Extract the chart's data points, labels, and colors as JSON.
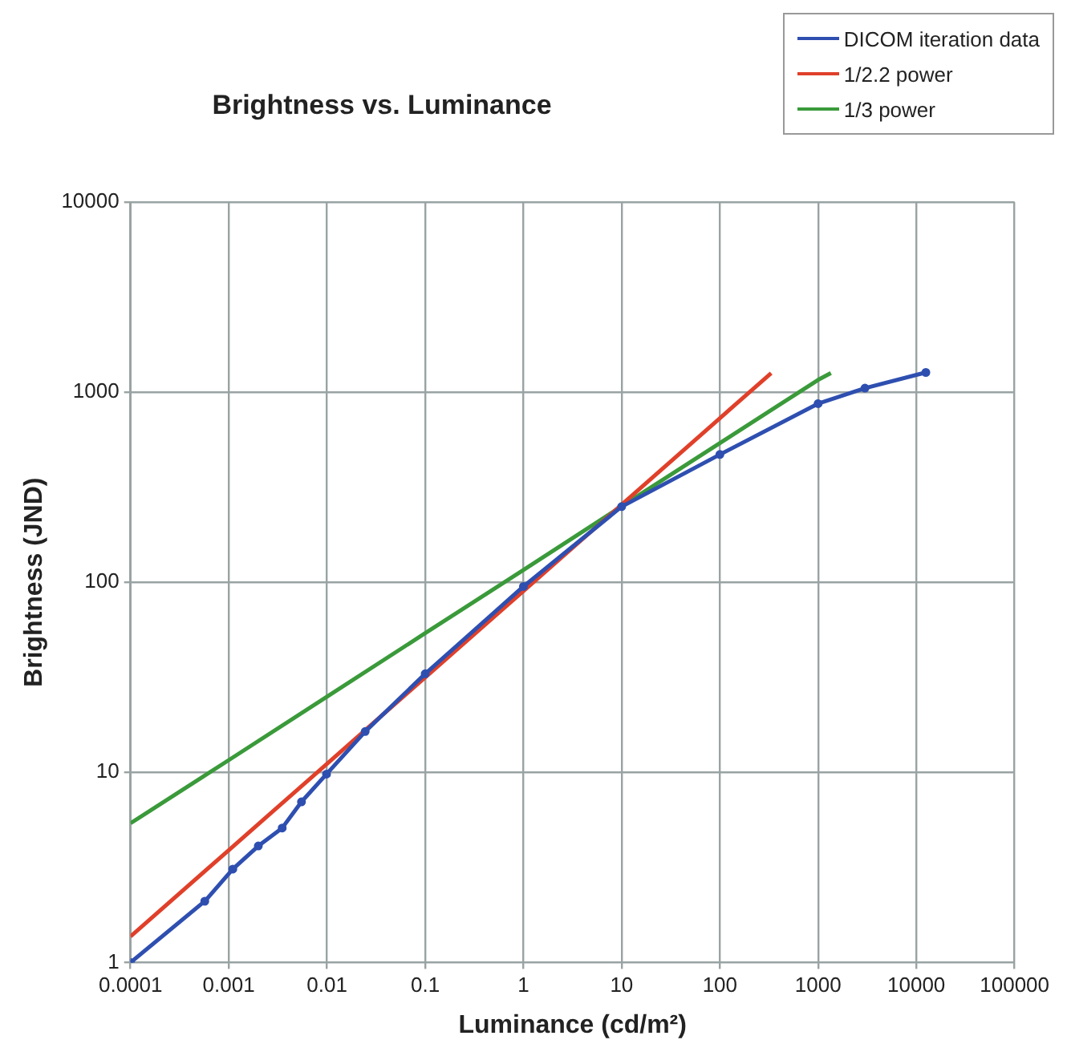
{
  "chart_data": {
    "type": "line",
    "title": "Brightness vs. Luminance",
    "xlabel": "Luminance (cd/m²)",
    "ylabel": "Brightness (JND)",
    "log": "xy",
    "grid": true,
    "legend": "top right",
    "line_style": "solid",
    "xlim": [
      0.0001,
      100000
    ],
    "xticks": [
      0.0001,
      0.001,
      0.01,
      0.1,
      1,
      10,
      100,
      1000,
      10000,
      100000
    ],
    "ylim": [
      1,
      10000
    ],
    "yticks": [
      1,
      10,
      100,
      1000,
      10000
    ],
    "series": [
      {
        "name": "DICOM iteration data",
        "color": "#2e4fb0",
        "marker": "circle",
        "x": [
          0.0001,
          0.00057,
          0.0011,
          0.002,
          0.0035,
          0.0055,
          0.0099,
          0.0245,
          0.1,
          1,
          10,
          100,
          1000,
          3000,
          12500
        ],
        "values": [
          1,
          2.1,
          3.1,
          4.1,
          5.1,
          7,
          9.8,
          16.4,
          33,
          95,
          250,
          470,
          870,
          1050,
          1270
        ]
      },
      {
        "name": "1/2.2 power",
        "color": "#e0402a",
        "marker": "none",
        "x": [
          0.0001,
          0.001,
          0.01,
          0.1,
          1,
          10,
          100,
          333
        ],
        "values": [
          1.37,
          3.9,
          11.1,
          31.6,
          90,
          256,
          730,
          1260
        ]
      },
      {
        "name": "1/3 power",
        "color": "#3a9a3a",
        "marker": "none",
        "x": [
          0.0001,
          0.001,
          0.01,
          0.1,
          1,
          10,
          100,
          1000,
          1350
        ],
        "values": [
          5.4,
          11.6,
          25,
          54,
          116,
          251,
          540,
          1160,
          1260
        ]
      }
    ]
  }
}
